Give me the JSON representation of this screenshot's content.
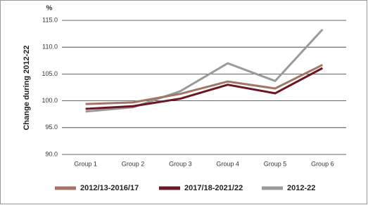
{
  "chart_data": {
    "type": "line",
    "y_unit": "%",
    "y_label": "Change during 2012-22",
    "categories": [
      "Group 1",
      "Group 2",
      "Group 3",
      "Group 4",
      "Group 5",
      "Group 6"
    ],
    "series": [
      {
        "name": "2012/13-2016/17",
        "color": "#a47464",
        "values": [
          99.4,
          99.7,
          101.3,
          103.6,
          102.3,
          106.7
        ]
      },
      {
        "name": "2017/18-2021/22",
        "color": "#6e1424",
        "values": [
          98.5,
          99.0,
          100.4,
          103.0,
          101.4,
          106.1
        ]
      },
      {
        "name": "2012-22",
        "color": "#9a9a9a",
        "values": [
          98.0,
          98.8,
          101.8,
          107.0,
          103.7,
          113.3
        ]
      }
    ],
    "ylim": [
      90,
      115
    ],
    "yticks": [
      {
        "value": 90,
        "label": "90.0"
      },
      {
        "value": 95,
        "label": "95.0"
      },
      {
        "value": 100,
        "label": "100.0"
      },
      {
        "value": 105,
        "label": "105.0"
      },
      {
        "value": 110,
        "label": "110.0"
      },
      {
        "value": 115,
        "label": "115.0"
      }
    ],
    "grid": true
  }
}
